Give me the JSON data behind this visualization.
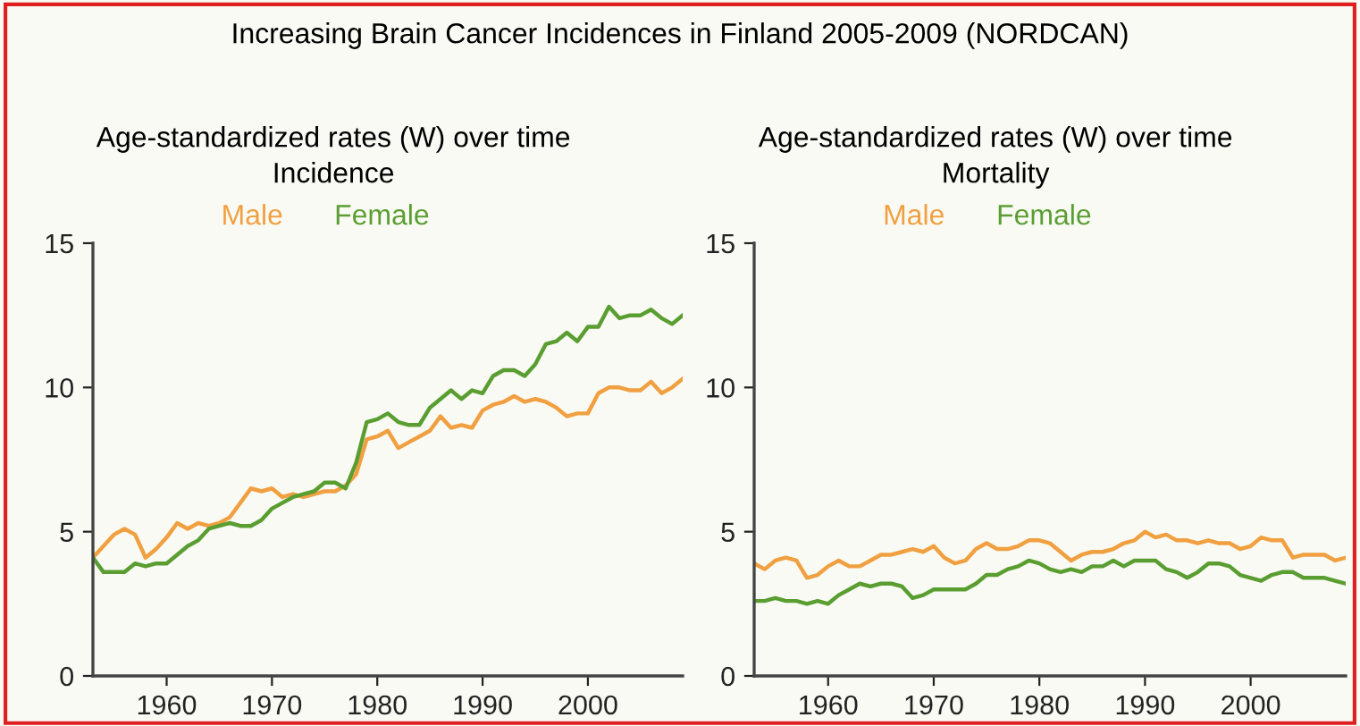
{
  "chart_data": [
    {
      "type": "line",
      "title": "Age-standardized rates (W) over time",
      "subtitle": "Incidence",
      "annotations": [
        "Increasing Brain Cancer Incidences in Finland 2005-2009 (NORDCAN)"
      ],
      "legend": "top",
      "grid": false,
      "x": [
        1953,
        1954,
        1955,
        1956,
        1957,
        1958,
        1959,
        1960,
        1961,
        1962,
        1963,
        1964,
        1965,
        1966,
        1967,
        1968,
        1969,
        1970,
        1971,
        1972,
        1973,
        1974,
        1975,
        1976,
        1977,
        1978,
        1979,
        1980,
        1981,
        1982,
        1983,
        1984,
        1985,
        1986,
        1987,
        1988,
        1989,
        1990,
        1991,
        1992,
        1993,
        1994,
        1995,
        1996,
        1997,
        1998,
        1999,
        2000,
        2001,
        2002,
        2003,
        2004,
        2005,
        2006,
        2007,
        2008,
        2009
      ],
      "xlim": [
        1953,
        2009
      ],
      "xticks": [
        1960,
        1970,
        1980,
        1990,
        2000
      ],
      "ylim": [
        0,
        15
      ],
      "yticks": [
        0,
        5,
        10,
        15
      ],
      "series": [
        {
          "name": "Male",
          "color": "#f0a040",
          "values": [
            4.1,
            4.5,
            4.9,
            5.1,
            4.9,
            4.1,
            4.4,
            4.8,
            5.3,
            5.1,
            5.3,
            5.2,
            5.3,
            5.5,
            6.0,
            6.5,
            6.4,
            6.5,
            6.2,
            6.3,
            6.2,
            6.3,
            6.4,
            6.4,
            6.6,
            7.0,
            8.2,
            8.3,
            8.5,
            7.9,
            8.1,
            8.3,
            8.5,
            9.0,
            8.6,
            8.7,
            8.6,
            9.2,
            9.4,
            9.5,
            9.7,
            9.5,
            9.6,
            9.5,
            9.3,
            9.0,
            9.1,
            9.1,
            9.8,
            10.0,
            10.0,
            9.9,
            9.9,
            10.2,
            9.8,
            10.0,
            10.3
          ]
        },
        {
          "name": "Female",
          "color": "#5a9e32",
          "values": [
            4.1,
            3.6,
            3.6,
            3.6,
            3.9,
            3.8,
            3.9,
            3.9,
            4.2,
            4.5,
            4.7,
            5.1,
            5.2,
            5.3,
            5.2,
            5.2,
            5.4,
            5.8,
            6.0,
            6.2,
            6.3,
            6.4,
            6.7,
            6.7,
            6.5,
            7.4,
            8.8,
            8.9,
            9.1,
            8.8,
            8.7,
            8.7,
            9.3,
            9.6,
            9.9,
            9.6,
            9.9,
            9.8,
            10.4,
            10.6,
            10.6,
            10.4,
            10.8,
            11.5,
            11.6,
            11.9,
            11.6,
            12.1,
            12.1,
            12.8,
            12.4,
            12.5,
            12.5,
            12.7,
            12.4,
            12.2,
            12.5
          ]
        }
      ]
    },
    {
      "type": "line",
      "title": "Age-standardized rates (W) over time",
      "subtitle": "Mortality",
      "legend": "top",
      "grid": false,
      "x": [
        1953,
        1954,
        1955,
        1956,
        1957,
        1958,
        1959,
        1960,
        1961,
        1962,
        1963,
        1964,
        1965,
        1966,
        1967,
        1968,
        1969,
        1970,
        1971,
        1972,
        1973,
        1974,
        1975,
        1976,
        1977,
        1978,
        1979,
        1980,
        1981,
        1982,
        1983,
        1984,
        1985,
        1986,
        1987,
        1988,
        1989,
        1990,
        1991,
        1992,
        1993,
        1994,
        1995,
        1996,
        1997,
        1998,
        1999,
        2000,
        2001,
        2002,
        2003,
        2004,
        2005,
        2006,
        2007,
        2008,
        2009
      ],
      "xlim": [
        1953,
        2009
      ],
      "xticks": [
        1960,
        1970,
        1980,
        1990,
        2000
      ],
      "ylim": [
        0,
        15
      ],
      "yticks": [
        0,
        5,
        10,
        15
      ],
      "series": [
        {
          "name": "Male",
          "color": "#f0a040",
          "values": [
            3.9,
            3.7,
            4.0,
            4.1,
            4.0,
            3.4,
            3.5,
            3.8,
            4.0,
            3.8,
            3.8,
            4.0,
            4.2,
            4.2,
            4.3,
            4.4,
            4.3,
            4.5,
            4.1,
            3.9,
            4.0,
            4.4,
            4.6,
            4.4,
            4.4,
            4.5,
            4.7,
            4.7,
            4.6,
            4.3,
            4.0,
            4.2,
            4.3,
            4.3,
            4.4,
            4.6,
            4.7,
            5.0,
            4.8,
            4.9,
            4.7,
            4.7,
            4.6,
            4.7,
            4.6,
            4.6,
            4.4,
            4.5,
            4.8,
            4.7,
            4.7,
            4.1,
            4.2,
            4.2,
            4.2,
            4.0,
            4.1
          ]
        },
        {
          "name": "Female",
          "color": "#5a9e32",
          "values": [
            2.6,
            2.6,
            2.7,
            2.6,
            2.6,
            2.5,
            2.6,
            2.5,
            2.8,
            3.0,
            3.2,
            3.1,
            3.2,
            3.2,
            3.1,
            2.7,
            2.8,
            3.0,
            3.0,
            3.0,
            3.0,
            3.2,
            3.5,
            3.5,
            3.7,
            3.8,
            4.0,
            3.9,
            3.7,
            3.6,
            3.7,
            3.6,
            3.8,
            3.8,
            4.0,
            3.8,
            4.0,
            4.0,
            4.0,
            3.7,
            3.6,
            3.4,
            3.6,
            3.9,
            3.9,
            3.8,
            3.5,
            3.4,
            3.3,
            3.5,
            3.6,
            3.6,
            3.4,
            3.4,
            3.4,
            3.3,
            3.2
          ]
        }
      ]
    }
  ]
}
